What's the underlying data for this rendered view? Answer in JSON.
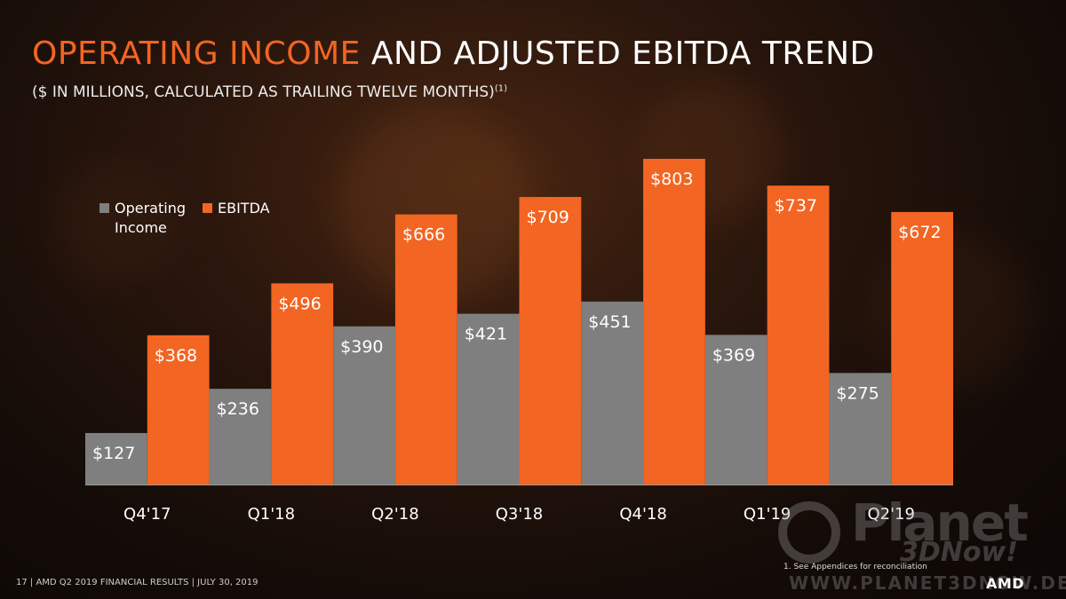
{
  "slide": {
    "title_accent": "OPERATING INCOME",
    "title_rest": " AND ADJUSTED EBITDA TREND",
    "subtitle": "($ IN MILLIONS, CALCULATED AS TRAILING TWELVE MONTHS)",
    "subtitle_sup": "(1)",
    "footnote": "1.    See Appendices for reconciliation",
    "footer": "17  | AMD Q2 2019 FINANCIAL RESULTS | JULY 30, 2019",
    "logo": "AMD",
    "watermark_planet": "Planet",
    "watermark_3dnow": "3DNow!",
    "watermark_url": "WWW.PLANET3DNOW.DE"
  },
  "colors": {
    "operating_income": "#7f7f7f",
    "ebitda": "#f26522",
    "accent": "#f26522"
  },
  "chart_data": {
    "type": "bar",
    "categories": [
      "Q4'17",
      "Q1'18",
      "Q2'18",
      "Q3'18",
      "Q4'18",
      "Q1'19",
      "Q2'19"
    ],
    "series": [
      {
        "name": "Operating Income",
        "values": [
          127,
          236,
          390,
          421,
          451,
          369,
          275
        ],
        "labels": [
          "$127",
          "$236",
          "$390",
          "$421",
          "$451",
          "$369",
          "$275"
        ]
      },
      {
        "name": "EBITDA",
        "values": [
          368,
          496,
          666,
          709,
          803,
          737,
          672
        ],
        "labels": [
          "$368",
          "$496",
          "$666",
          "$709",
          "$803",
          "$737",
          "$672"
        ]
      }
    ],
    "legend": {
      "position": "top-left",
      "entries": [
        "Operating Income",
        "EBITDA"
      ]
    },
    "ylim": [
      0,
      803
    ],
    "grid": false
  }
}
